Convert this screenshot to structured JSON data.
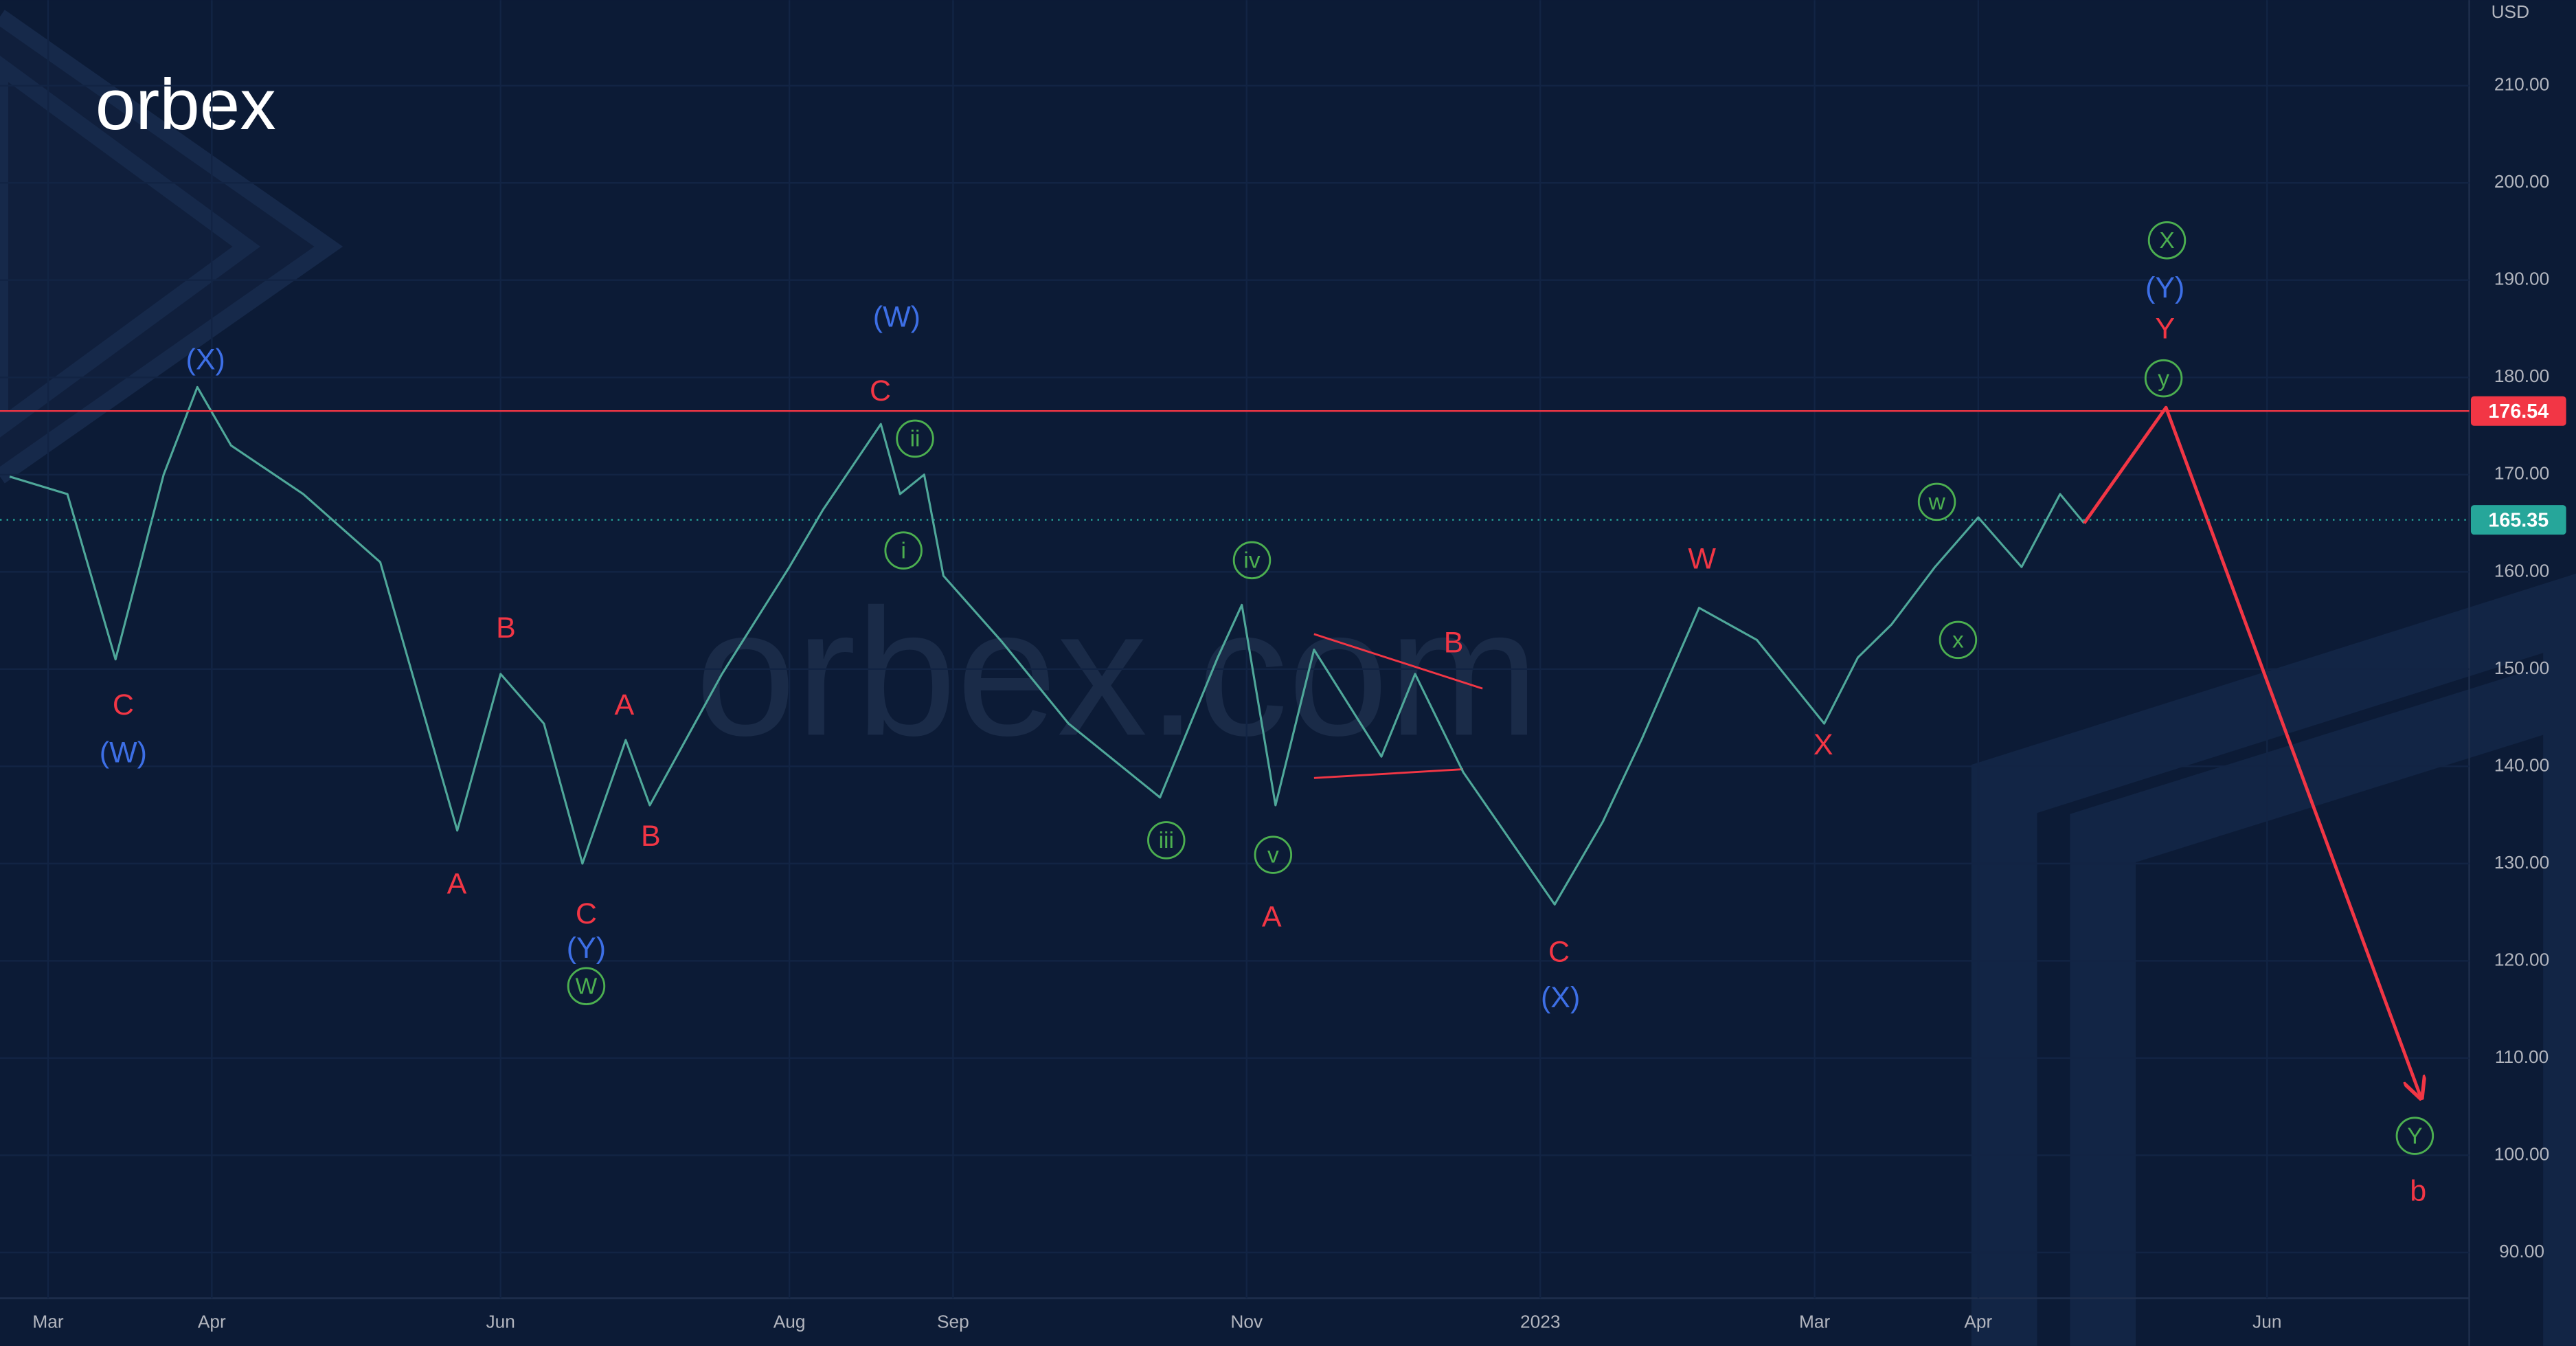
{
  "chart_data": {
    "type": "line",
    "logo": "orbex",
    "watermark": "orbex.com",
    "currency": "USD",
    "xlim": [
      0,
      513
    ],
    "ylim": [
      85.3,
      218.8
    ],
    "xticks": [
      {
        "value": 10,
        "label": "Mar"
      },
      {
        "value": 44,
        "label": "Apr"
      },
      {
        "value": 104,
        "label": "Jun"
      },
      {
        "value": 164,
        "label": "Aug"
      },
      {
        "value": 198,
        "label": "Sep"
      },
      {
        "value": 259,
        "label": "Nov"
      },
      {
        "value": 320,
        "label": "2023"
      },
      {
        "value": 377,
        "label": "Mar"
      },
      {
        "value": 411,
        "label": "Apr"
      },
      {
        "value": 471,
        "label": "Jun"
      }
    ],
    "yticks": [
      {
        "value": 90,
        "label": "90.00"
      },
      {
        "value": 100,
        "label": "100.00"
      },
      {
        "value": 110,
        "label": "110.00"
      },
      {
        "value": 120,
        "label": "120.00"
      },
      {
        "value": 130,
        "label": "130.00"
      },
      {
        "value": 140,
        "label": "140.00"
      },
      {
        "value": 150,
        "label": "150.00"
      },
      {
        "value": 160,
        "label": "160.00"
      },
      {
        "value": 170,
        "label": "170.00"
      },
      {
        "value": 180,
        "label": "180.00"
      },
      {
        "value": 190,
        "label": "190.00"
      },
      {
        "value": 200,
        "label": "200.00"
      },
      {
        "value": 210,
        "label": "210.00"
      }
    ],
    "series": [
      {
        "color": "#4fa89a",
        "x": [
          2,
          14,
          24,
          34,
          41,
          48,
          63,
          79,
          95,
          104,
          113,
          121,
          130,
          135,
          150,
          164,
          171,
          183,
          187,
          192,
          196,
          208,
          222,
          241,
          253,
          258,
          265,
          273,
          287,
          294,
          304,
          323,
          333,
          341,
          353,
          365,
          379,
          386,
          393,
          402,
          411,
          420,
          428,
          433
        ],
        "values": [
          169.8,
          168,
          151,
          170,
          179,
          173,
          168,
          161,
          133.4,
          149.5,
          144.4,
          130,
          142.7,
          136,
          149.5,
          160.5,
          166.4,
          175.2,
          168,
          170,
          159.6,
          152.9,
          144.4,
          136.8,
          151.2,
          156.6,
          136,
          152,
          141,
          149.5,
          139.4,
          125.8,
          134.3,
          142.7,
          156.3,
          153,
          144.4,
          151.2,
          154.6,
          160.5,
          165.6,
          160.5,
          168,
          165
        ]
      },
      {
        "color": "#f23645",
        "projection": true,
        "x": [
          433,
          450,
          503
        ],
        "values": [
          165,
          176.9,
          105.9
        ]
      }
    ],
    "levels": [
      {
        "value": 176.54,
        "color": "#f23645",
        "style": "solid"
      },
      {
        "value": 165.35,
        "color": "#26a69a",
        "style": "dotted"
      }
    ],
    "trendlines": [
      {
        "x": [
          273,
          308
        ],
        "values": [
          153.6,
          148
        ],
        "color": "#f23645"
      },
      {
        "x": [
          273,
          304
        ],
        "values": [
          138.8,
          139.7
        ],
        "color": "#f23645"
      }
    ],
    "annotations": [
      {
        "text": "(X)",
        "x": 42.7,
        "y": 181.8,
        "color": "#3d6fe6"
      },
      {
        "text": "(W)",
        "x": 25.6,
        "y": 141.4,
        "color": "#3d6fe6"
      },
      {
        "text": "(W)",
        "x": 186.3,
        "y": 186.2,
        "color": "#3d6fe6"
      },
      {
        "text": "(Y)",
        "x": 121.8,
        "y": 121.3,
        "color": "#3d6fe6"
      },
      {
        "text": "(X)",
        "x": 324.2,
        "y": 116.2,
        "color": "#3d6fe6"
      },
      {
        "text": "(Y)",
        "x": 449.8,
        "y": 189.2,
        "color": "#3d6fe6"
      },
      {
        "text": "C",
        "x": 25.6,
        "y": 146.3,
        "color": "#f23645"
      },
      {
        "text": "B",
        "x": 105.1,
        "y": 154.2,
        "color": "#f23645"
      },
      {
        "text": "A",
        "x": 94.9,
        "y": 127.9,
        "color": "#f23645"
      },
      {
        "text": "C",
        "x": 121.8,
        "y": 124.8,
        "color": "#f23645"
      },
      {
        "text": "A",
        "x": 129.7,
        "y": 146.3,
        "color": "#f23645"
      },
      {
        "text": "B",
        "x": 135.2,
        "y": 132.8,
        "color": "#f23645"
      },
      {
        "text": "C",
        "x": 182.9,
        "y": 178.6,
        "color": "#f23645"
      },
      {
        "text": "A",
        "x": 264.2,
        "y": 124.5,
        "color": "#f23645"
      },
      {
        "text": "B",
        "x": 302,
        "y": 152.7,
        "color": "#f23645"
      },
      {
        "text": "C",
        "x": 323.9,
        "y": 120.9,
        "color": "#f23645"
      },
      {
        "text": "W",
        "x": 353.6,
        "y": 161.3,
        "color": "#f23645"
      },
      {
        "text": "X",
        "x": 378.8,
        "y": 142.2,
        "color": "#f23645"
      },
      {
        "text": "Y",
        "x": 449.8,
        "y": 185,
        "color": "#f23645"
      },
      {
        "text": "b",
        "x": 502.4,
        "y": 96.3,
        "color": "#f23645"
      },
      {
        "text": "W",
        "x": 121.8,
        "y": 117.4,
        "color": "#4caf50",
        "circled": true
      },
      {
        "text": "ii",
        "x": 190.1,
        "y": 173.7,
        "color": "#4caf50",
        "circled": true
      },
      {
        "text": "i",
        "x": 187.7,
        "y": 162.2,
        "color": "#4caf50",
        "circled": true
      },
      {
        "text": "iii",
        "x": 242.3,
        "y": 132.4,
        "color": "#4caf50",
        "circled": true
      },
      {
        "text": "iv",
        "x": 260.1,
        "y": 161.2,
        "color": "#4caf50",
        "circled": true
      },
      {
        "text": "v",
        "x": 264.5,
        "y": 130.9,
        "color": "#4caf50",
        "circled": true
      },
      {
        "text": "w",
        "x": 402.4,
        "y": 167.2,
        "color": "#4caf50",
        "circled": true
      },
      {
        "text": "x",
        "x": 406.8,
        "y": 153,
        "color": "#4caf50",
        "circled": true
      },
      {
        "text": "y",
        "x": 449.5,
        "y": 179.9,
        "color": "#4caf50",
        "circled": true
      },
      {
        "text": "X",
        "x": 450.2,
        "y": 194.1,
        "color": "#4caf50",
        "circled": true
      },
      {
        "text": "Y",
        "x": 501.7,
        "y": 102,
        "color": "#4caf50",
        "circled": true
      }
    ]
  }
}
